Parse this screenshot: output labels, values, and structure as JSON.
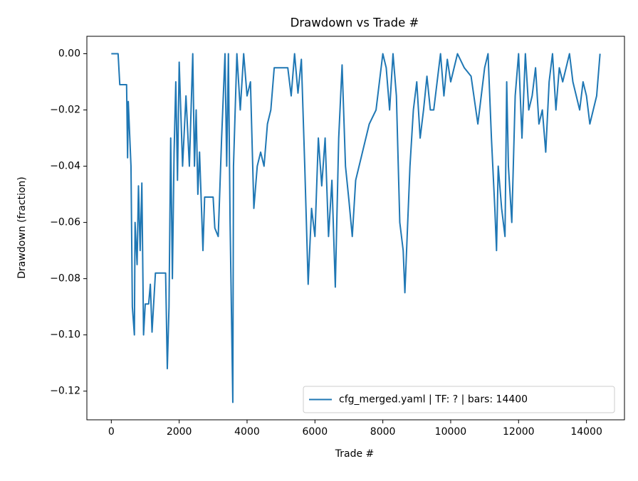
{
  "chart_data": {
    "type": "line",
    "title": "Drawdown vs Trade #",
    "xlabel": "Trade #",
    "ylabel": "Drawdown (fraction)",
    "xlim": [
      -720,
      15120
    ],
    "ylim": [
      -0.1302,
      0.0062
    ],
    "xticks": [
      0,
      2000,
      4000,
      6000,
      8000,
      10000,
      12000,
      14000
    ],
    "yticks": [
      {
        "value": 0,
        "label": "0.00"
      },
      {
        "value": -0.02,
        "label": "−0.02"
      },
      {
        "value": -0.04,
        "label": "−0.04"
      },
      {
        "value": -0.06,
        "label": "−0.06"
      },
      {
        "value": -0.08,
        "label": "−0.08"
      },
      {
        "value": -0.1,
        "label": "−0.10"
      },
      {
        "value": -0.12,
        "label": "−0.12"
      }
    ],
    "legend": "lower right",
    "x": [
      0,
      200,
      250,
      450,
      480,
      500,
      580,
      620,
      680,
      700,
      760,
      800,
      850,
      900,
      950,
      1000,
      1100,
      1150,
      1200,
      1300,
      1600,
      1650,
      1700,
      1750,
      1800,
      1850,
      1900,
      1950,
      2000,
      2100,
      2200,
      2300,
      2400,
      2450,
      2500,
      2550,
      2600,
      2700,
      2750,
      3000,
      3050,
      3150,
      3250,
      3350,
      3400,
      3450,
      3500,
      3580,
      3600,
      3700,
      3800,
      3900,
      4000,
      4100,
      4200,
      4300,
      4400,
      4500,
      4600,
      4700,
      4800,
      5200,
      5300,
      5400,
      5500,
      5600,
      5700,
      5800,
      5900,
      6000,
      6100,
      6200,
      6300,
      6400,
      6500,
      6600,
      6700,
      6800,
      6900,
      7000,
      7100,
      7200,
      7400,
      7600,
      7800,
      7900,
      8000,
      8100,
      8200,
      8300,
      8400,
      8500,
      8600,
      8650,
      8700,
      8800,
      8900,
      9000,
      9100,
      9200,
      9300,
      9400,
      9500,
      9600,
      9700,
      9800,
      9900,
      10000,
      10200,
      10400,
      10600,
      10800,
      10900,
      11000,
      11100,
      11200,
      11300,
      11350,
      11400,
      11500,
      11600,
      11650,
      11700,
      11800,
      11900,
      12000,
      12100,
      12200,
      12300,
      12400,
      12500,
      12600,
      12700,
      12800,
      12900,
      13000,
      13100,
      13200,
      13300,
      13400,
      13500,
      13600,
      13700,
      13800,
      13900,
      14000,
      14100,
      14200,
      14300,
      14400
    ],
    "series": [
      {
        "name": "cfg_merged.yaml | TF: ? | bars: 14400",
        "color": "#1f77b4",
        "values": [
          0,
          0,
          -0.011,
          -0.011,
          -0.037,
          -0.017,
          -0.04,
          -0.09,
          -0.1,
          -0.06,
          -0.075,
          -0.047,
          -0.07,
          -0.046,
          -0.1,
          -0.089,
          -0.089,
          -0.082,
          -0.099,
          -0.078,
          -0.078,
          -0.112,
          -0.09,
          -0.03,
          -0.08,
          -0.035,
          -0.01,
          -0.045,
          -0.003,
          -0.04,
          -0.015,
          -0.04,
          0,
          -0.04,
          -0.02,
          -0.05,
          -0.035,
          -0.07,
          -0.051,
          -0.051,
          -0.062,
          -0.065,
          -0.03,
          0,
          -0.04,
          0,
          -0.06,
          -0.124,
          -0.04,
          0,
          -0.02,
          0,
          -0.015,
          -0.01,
          -0.055,
          -0.04,
          -0.035,
          -0.04,
          -0.025,
          -0.02,
          -0.005,
          -0.005,
          -0.015,
          0,
          -0.014,
          -0.002,
          -0.04,
          -0.082,
          -0.055,
          -0.065,
          -0.03,
          -0.047,
          -0.03,
          -0.065,
          -0.045,
          -0.083,
          -0.03,
          -0.004,
          -0.04,
          -0.052,
          -0.065,
          -0.045,
          -0.035,
          -0.025,
          -0.02,
          -0.01,
          0,
          -0.005,
          -0.02,
          0,
          -0.015,
          -0.06,
          -0.07,
          -0.085,
          -0.07,
          -0.04,
          -0.02,
          -0.01,
          -0.03,
          -0.02,
          -0.008,
          -0.02,
          -0.02,
          -0.01,
          0,
          -0.015,
          -0.002,
          -0.01,
          0,
          -0.005,
          -0.008,
          -0.025,
          -0.015,
          -0.005,
          0,
          -0.03,
          -0.055,
          -0.07,
          -0.04,
          -0.055,
          -0.065,
          -0.01,
          -0.04,
          -0.06,
          -0.015,
          0,
          -0.03,
          0,
          -0.02,
          -0.015,
          -0.005,
          -0.025,
          -0.02,
          -0.035,
          -0.01,
          0,
          -0.02,
          -0.005,
          -0.01,
          -0.005,
          0,
          -0.01,
          -0.015,
          -0.02,
          -0.01,
          -0.015,
          -0.025,
          -0.02,
          -0.015,
          0
        ]
      }
    ]
  }
}
